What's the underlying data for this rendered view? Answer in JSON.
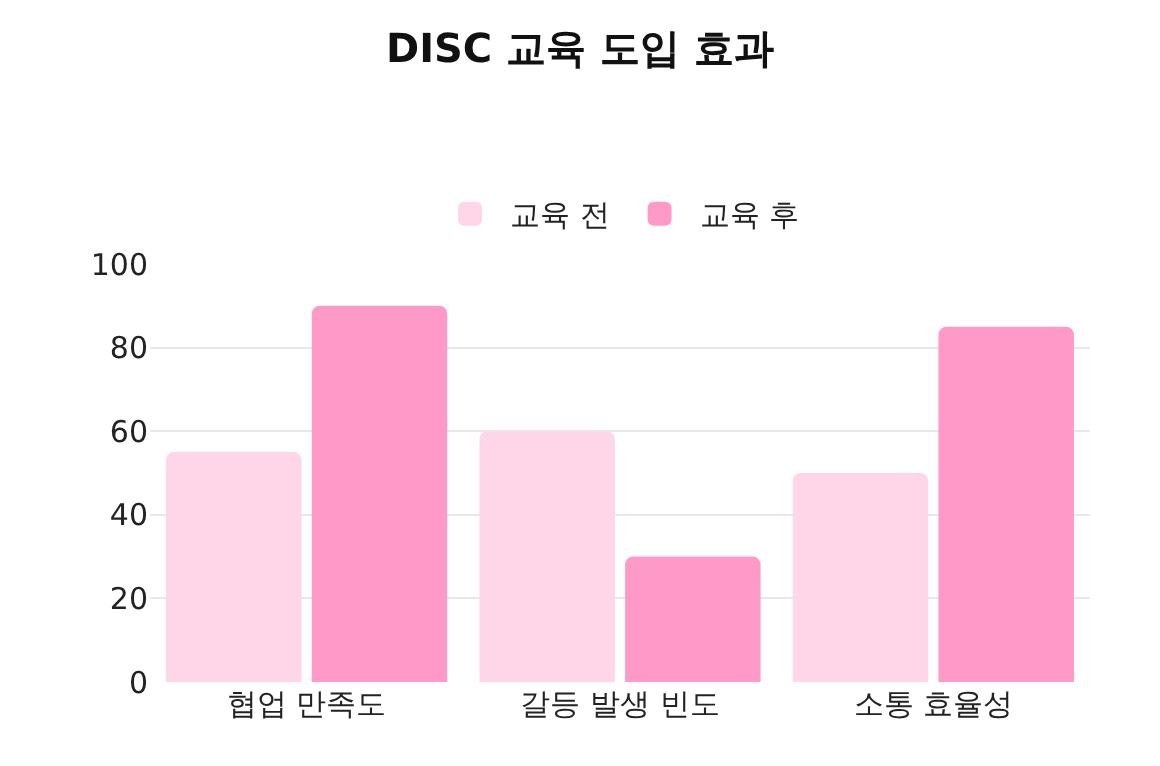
{
  "chart_data": {
    "type": "bar",
    "title": "DISC 교육 도입 효과",
    "categories": [
      "협업 만족도",
      "갈등 발생 빈도",
      "소통 효율성"
    ],
    "series": [
      {
        "name": "교육 전",
        "color": "#ffd6e7",
        "values": [
          55,
          60,
          50
        ]
      },
      {
        "name": "교육 후",
        "color": "#ff99c8",
        "values": [
          90,
          30,
          85
        ]
      }
    ],
    "ylim": [
      0,
      100
    ],
    "yticks": [
      0,
      20,
      40,
      60,
      80,
      100
    ],
    "grid": "y",
    "legend": "top"
  }
}
